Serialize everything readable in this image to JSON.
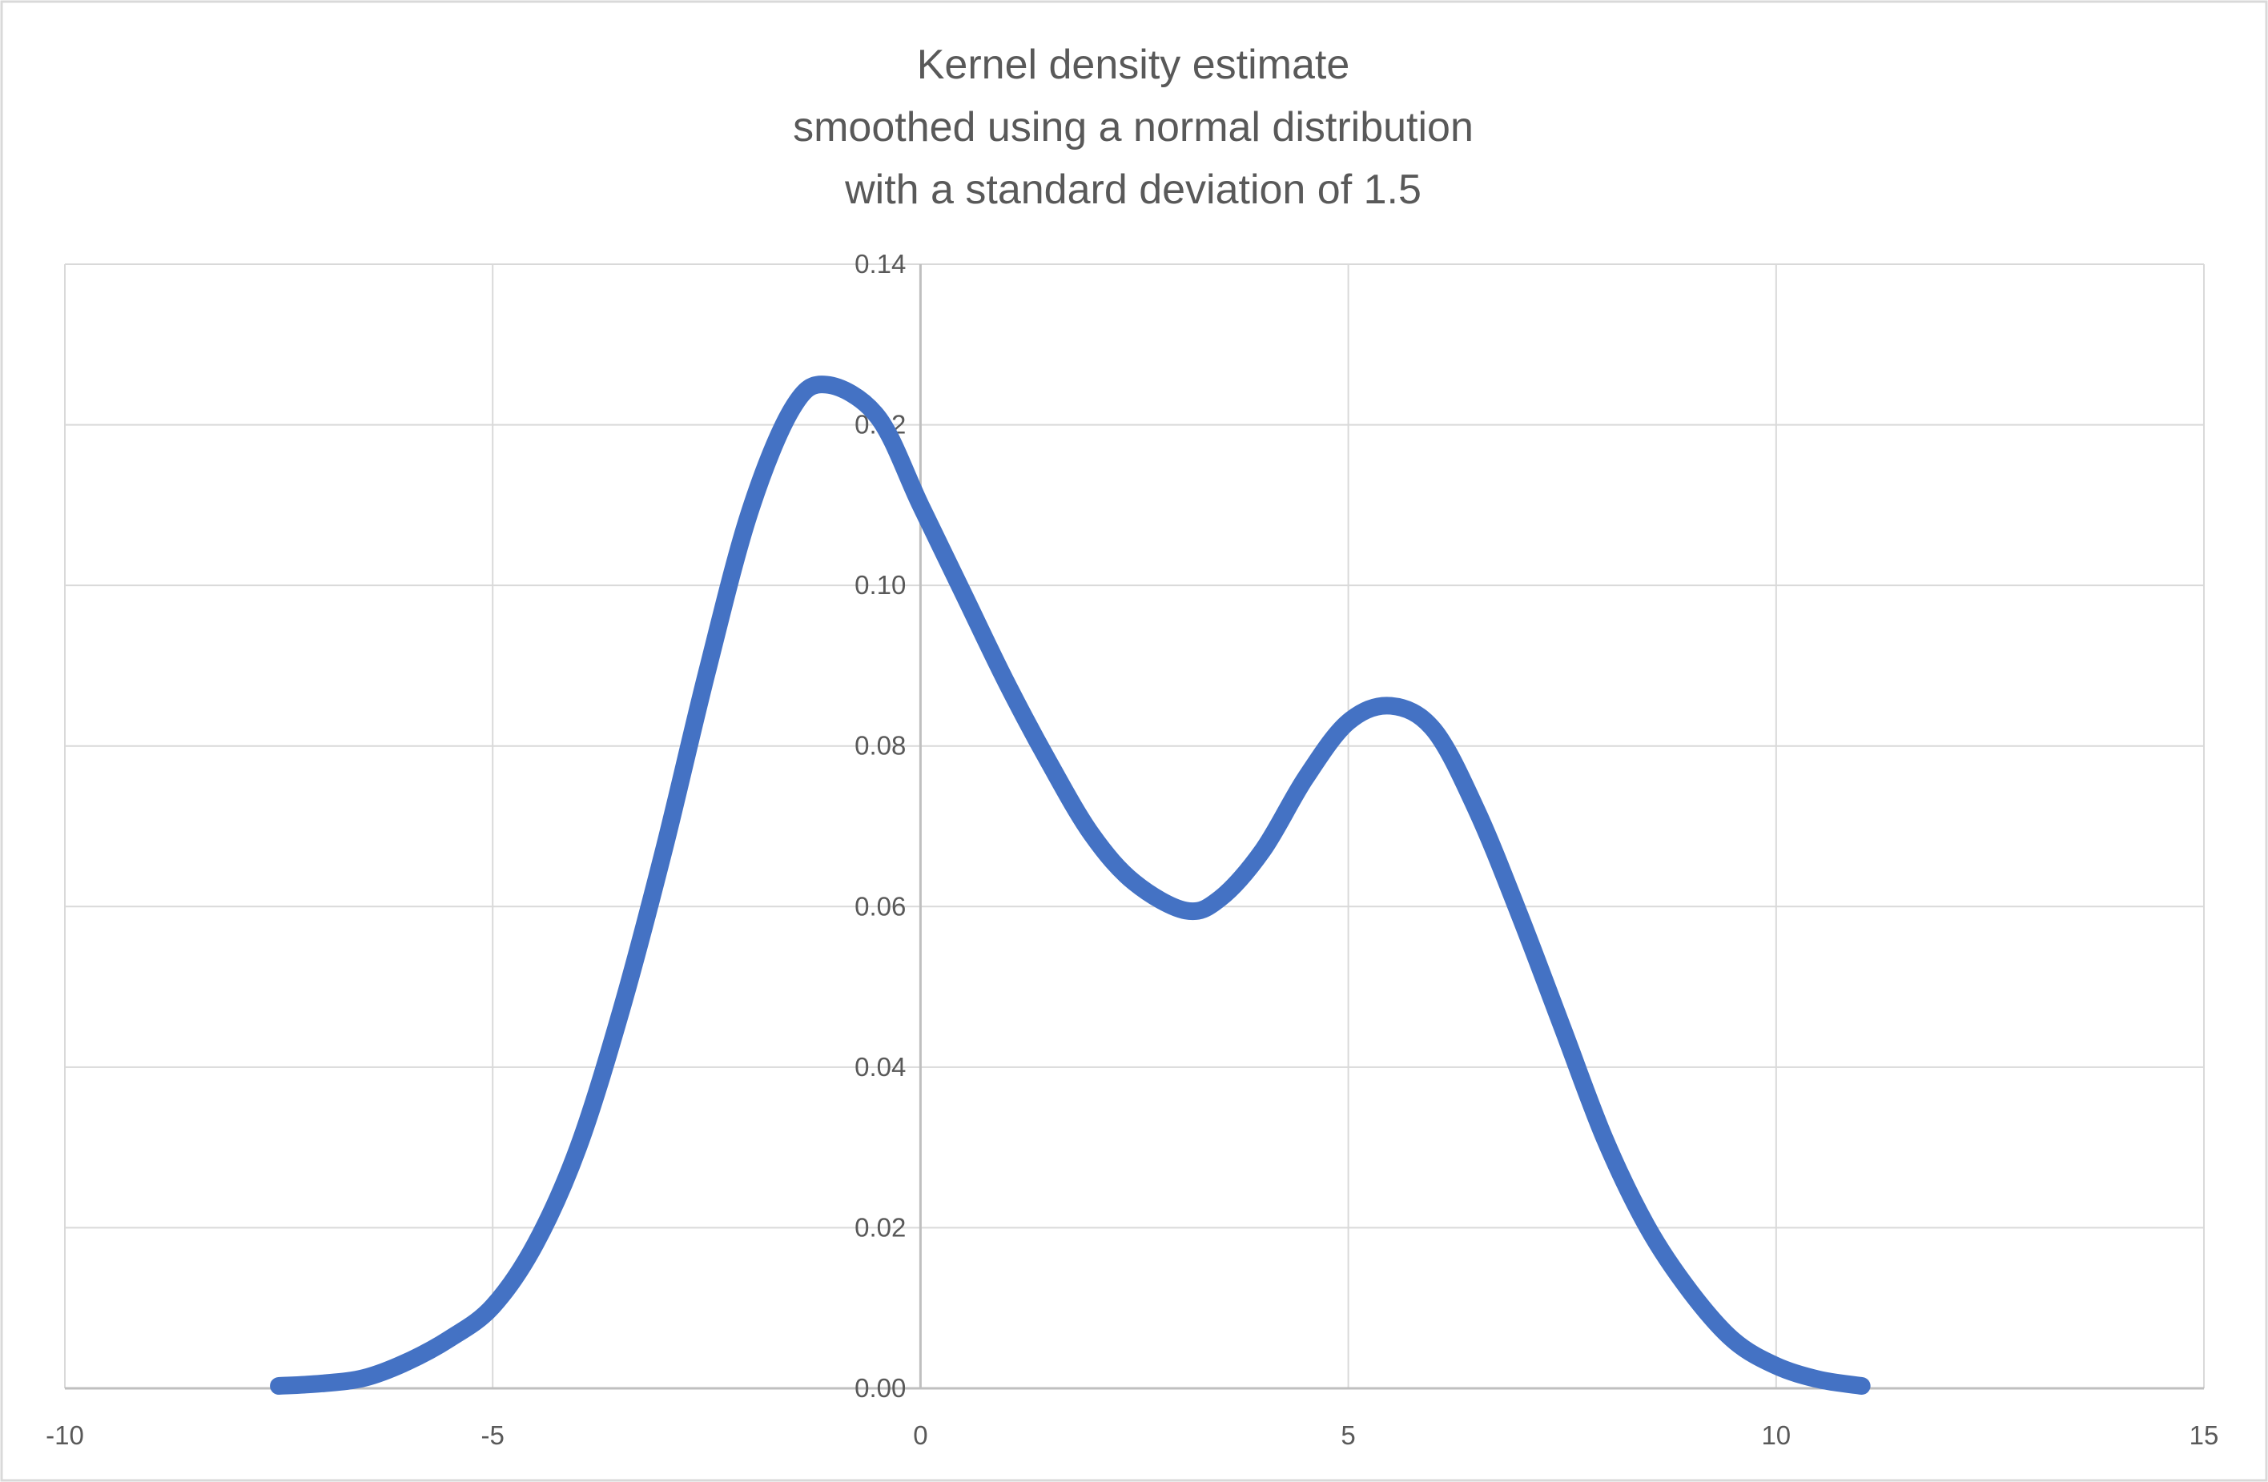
{
  "chart_data": {
    "type": "line",
    "title": [
      "Kernel density estimate",
      "smoothed using a normal distribution",
      "with a standard deviation of 1.5"
    ],
    "xlabel": "",
    "ylabel": "",
    "xlim": [
      -10,
      15
    ],
    "ylim": [
      0,
      0.14
    ],
    "xticks": [
      "-10",
      "-5",
      "0",
      "5",
      "10",
      "15"
    ],
    "yticks": [
      "0.00",
      "0.02",
      "0.04",
      "0.06",
      "0.08",
      "0.10",
      "0.12",
      "0.14"
    ],
    "grid": true,
    "legend": "none",
    "color": "#4472C4",
    "series": [
      {
        "x": [
          -7.5,
          -7,
          -6.5,
          -6,
          -5.5,
          -5,
          -4.5,
          -4,
          -3.5,
          -3,
          -2.5,
          -2,
          -1.5,
          -1.1,
          -0.5,
          0,
          0.5,
          1,
          1.5,
          2,
          2.5,
          3.1,
          3.5,
          4,
          4.5,
          5,
          5.5,
          6,
          6.5,
          7,
          7.5,
          8,
          8.5,
          9,
          9.5,
          10,
          10.5,
          11
        ],
        "y": [
          0.0003,
          0.0006,
          0.0013,
          0.0033,
          0.0062,
          0.0102,
          0.018,
          0.03,
          0.047,
          0.067,
          0.089,
          0.109,
          0.122,
          0.125,
          0.121,
          0.11,
          0.099,
          0.088,
          0.078,
          0.069,
          0.063,
          0.0595,
          0.061,
          0.067,
          0.076,
          0.083,
          0.085,
          0.082,
          0.072,
          0.059,
          0.045,
          0.031,
          0.02,
          0.012,
          0.006,
          0.0028,
          0.0011,
          0.0003
        ]
      }
    ]
  }
}
